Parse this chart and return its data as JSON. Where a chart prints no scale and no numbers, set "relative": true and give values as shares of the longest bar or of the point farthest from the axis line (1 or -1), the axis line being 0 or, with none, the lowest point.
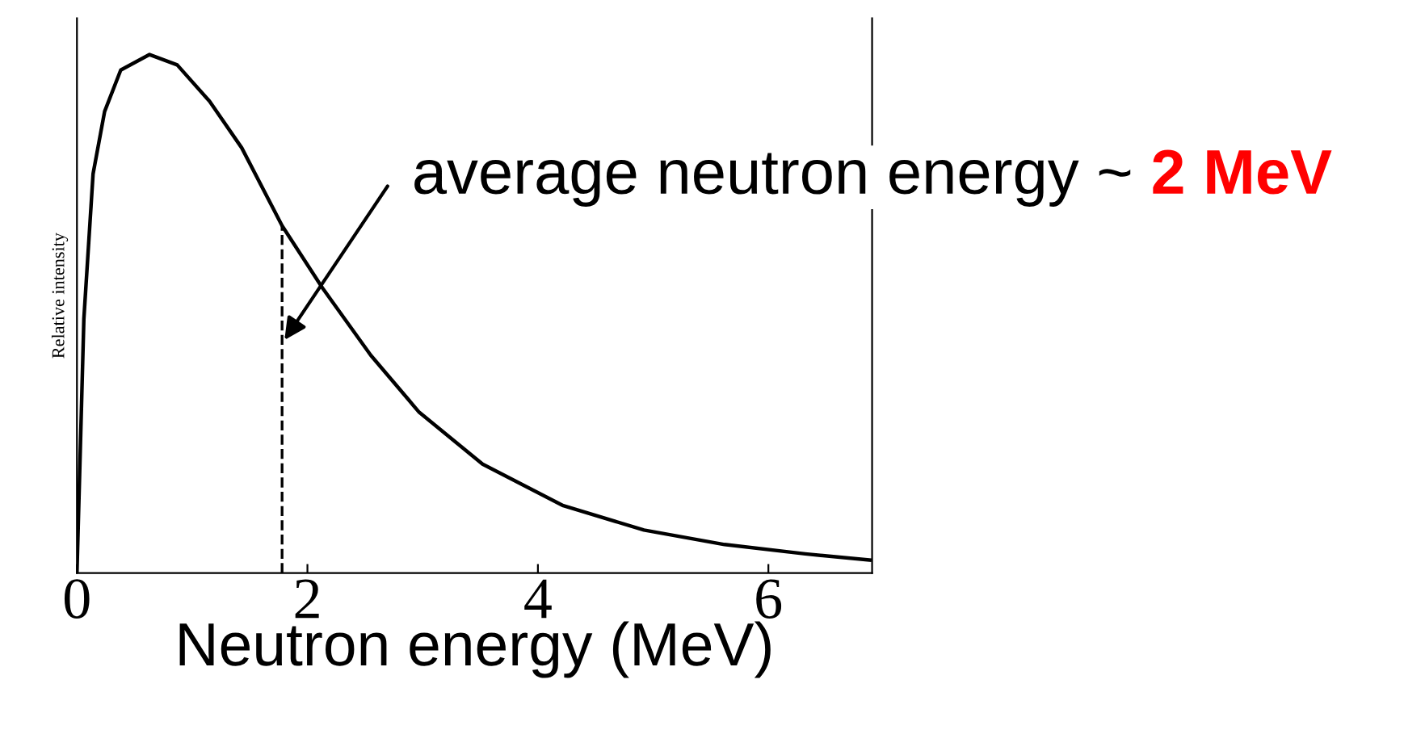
{
  "chart_data": {
    "type": "line",
    "relative": true,
    "xlabel": "Neutron energy (MeV)",
    "ylabel": "Relative intensity",
    "x": [
      0,
      0.06,
      0.14,
      0.24,
      0.38,
      0.63,
      0.87,
      1.15,
      1.43,
      1.78,
      2.13,
      2.55,
      2.97,
      3.52,
      4.22,
      4.92,
      5.62,
      6.32,
      6.88
    ],
    "values": [
      0,
      0.49,
      0.77,
      0.89,
      0.97,
      1.0,
      0.98,
      0.91,
      0.82,
      0.67,
      0.55,
      0.42,
      0.31,
      0.21,
      0.13,
      0.083,
      0.055,
      0.037,
      0.025
    ],
    "color": "#000000",
    "line_style": "solid",
    "marker": "none",
    "xlim": [
      0,
      6.9
    ],
    "xticks": [
      0,
      2,
      4,
      6
    ],
    "grid": false,
    "legend": false,
    "ref_lines": [
      {
        "axis": "x",
        "value": 1.78,
        "line_style": "dashed",
        "color": "#000000"
      }
    ],
    "annotations": [
      "average neutron energy ~ ",
      "2 MeV"
    ]
  }
}
